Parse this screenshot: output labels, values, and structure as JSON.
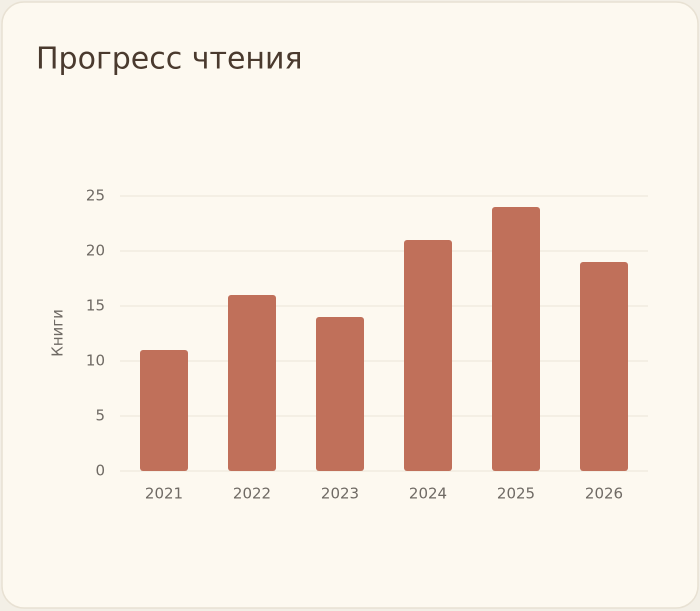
{
  "chart_data": {
    "type": "bar",
    "title": "Прогресс чтения",
    "y_label": "Книги",
    "categories": [
      "2021",
      "2022",
      "2023",
      "2024",
      "2025",
      "2026"
    ],
    "values": [
      11,
      16,
      14,
      21,
      24,
      19
    ],
    "color": "#c0705a",
    "ylim": [
      0,
      25
    ],
    "yticks": [
      0,
      5,
      10,
      15,
      20,
      25
    ],
    "grid": true
  }
}
